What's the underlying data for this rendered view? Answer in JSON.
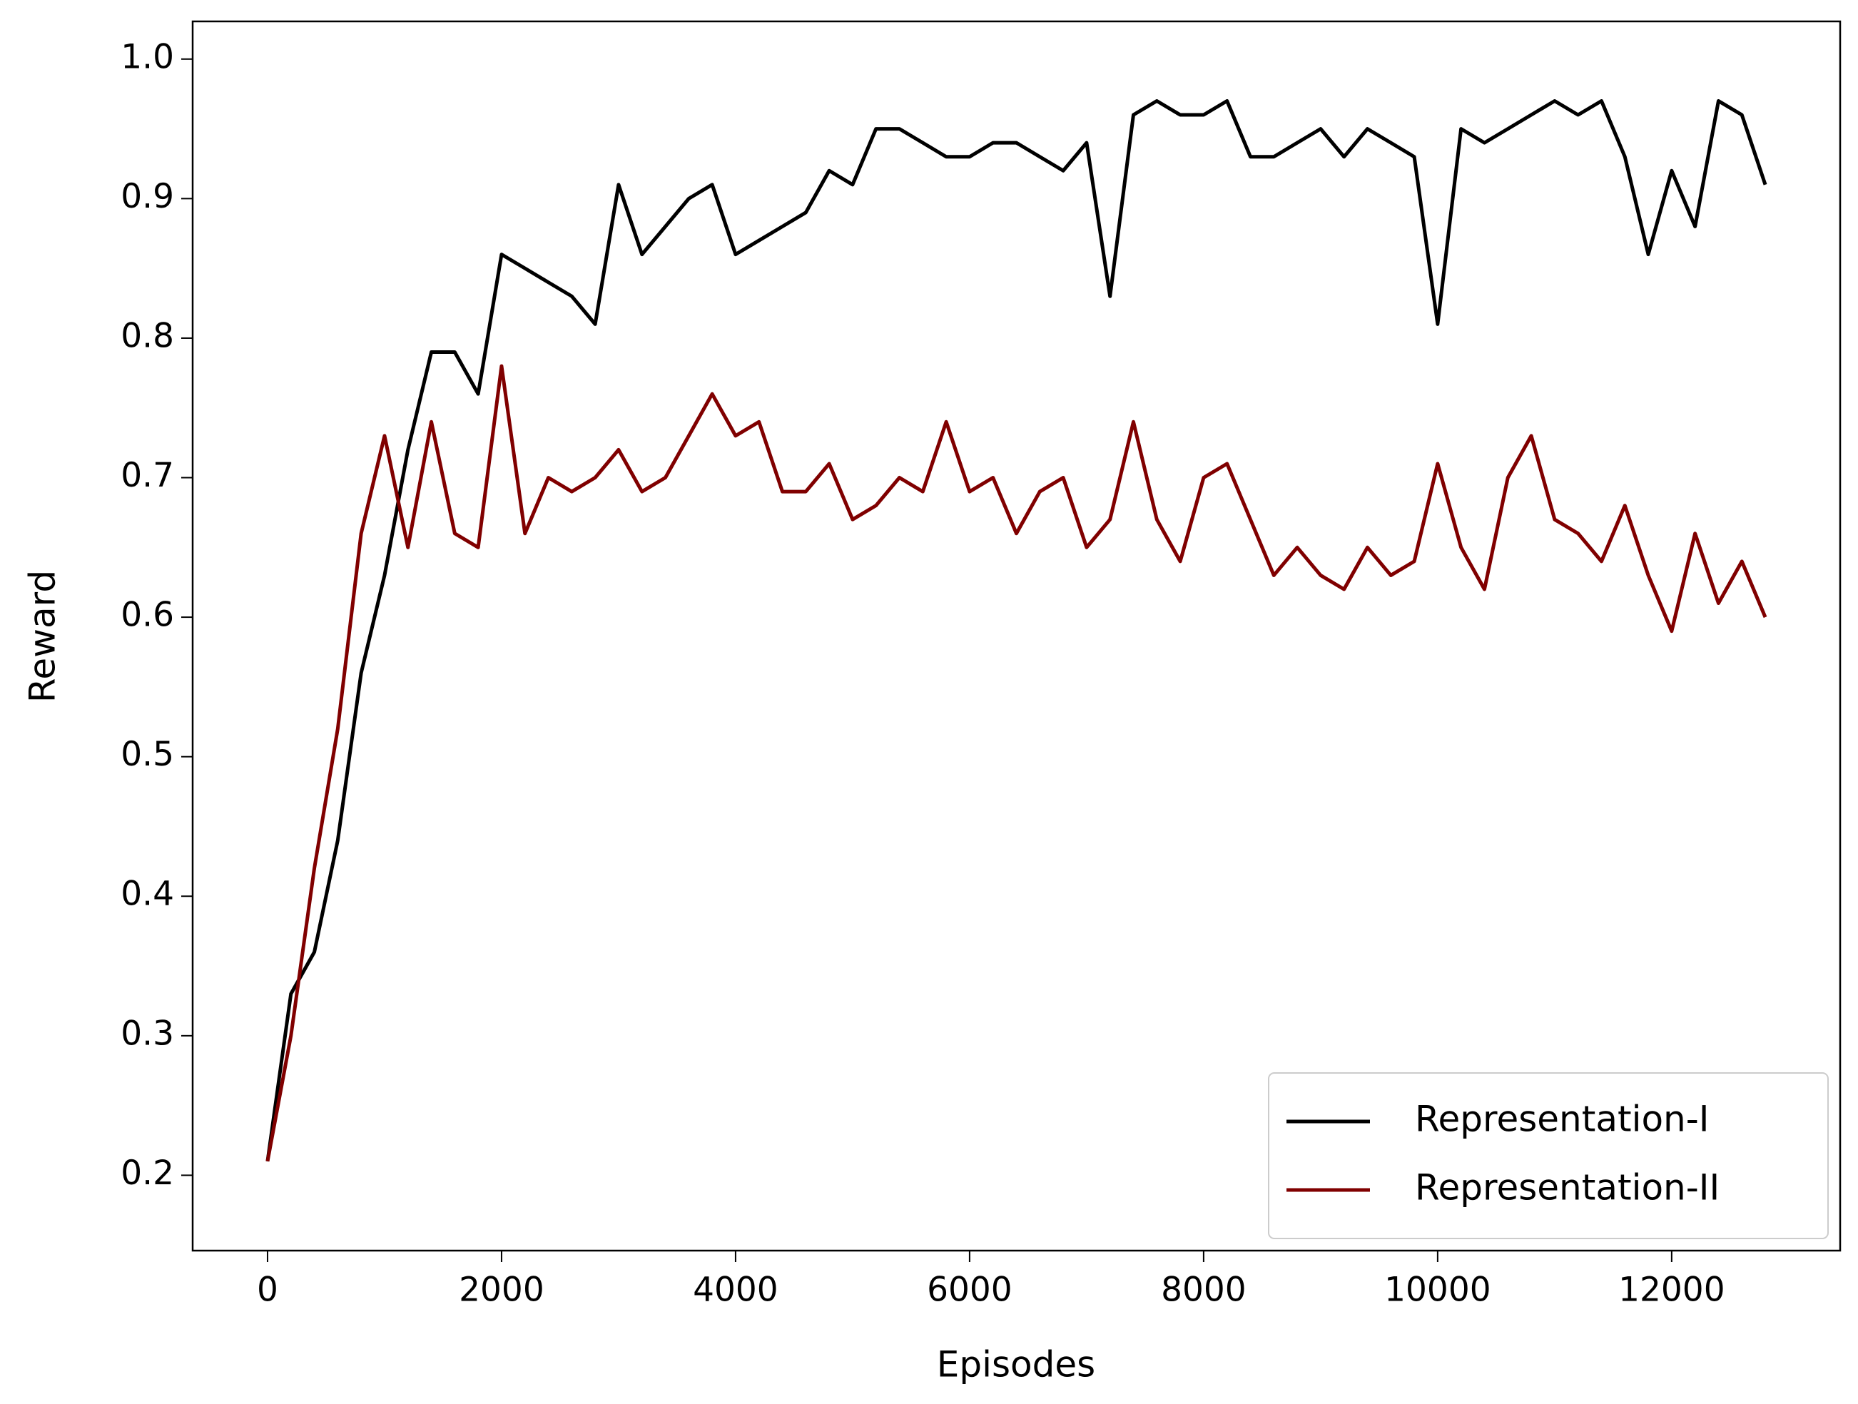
{
  "chart_data": {
    "type": "line",
    "x_label": "Episodes",
    "y_label": "Reward",
    "x": [
      0,
      200,
      400,
      600,
      800,
      1000,
      1200,
      1400,
      1600,
      1800,
      2000,
      2200,
      2400,
      2600,
      2800,
      3000,
      3200,
      3400,
      3600,
      3800,
      4000,
      4200,
      4400,
      4600,
      4800,
      5000,
      5200,
      5400,
      5600,
      5800,
      6000,
      6200,
      6400,
      6600,
      6800,
      7000,
      7200,
      7400,
      7600,
      7800,
      8000,
      8200,
      8400,
      8600,
      8800,
      9000,
      9200,
      9400,
      9600,
      9800,
      10000,
      10200,
      10400,
      10600,
      10800,
      11000,
      11200,
      11400,
      11600,
      11800,
      12000,
      12200,
      12400,
      12600,
      12800
    ],
    "series": [
      {
        "name": "Representation-I",
        "color": "#000000",
        "values": [
          0.21,
          0.33,
          0.36,
          0.44,
          0.56,
          0.63,
          0.72,
          0.79,
          0.79,
          0.76,
          0.86,
          0.85,
          0.84,
          0.83,
          0.81,
          0.91,
          0.86,
          0.88,
          0.9,
          0.91,
          0.86,
          0.87,
          0.88,
          0.89,
          0.92,
          0.91,
          0.95,
          0.95,
          0.94,
          0.93,
          0.93,
          0.94,
          0.94,
          0.93,
          0.92,
          0.94,
          0.83,
          0.96,
          0.97,
          0.96,
          0.96,
          0.97,
          0.93,
          0.93,
          0.94,
          0.95,
          0.93,
          0.95,
          0.94,
          0.93,
          0.81,
          0.95,
          0.94,
          0.95,
          0.96,
          0.97,
          0.96,
          0.97,
          0.93,
          0.86,
          0.92,
          0.88,
          0.97,
          0.96,
          0.91
        ]
      },
      {
        "name": "Representation-II",
        "color": "#800000",
        "values": [
          0.21,
          0.3,
          0.42,
          0.52,
          0.66,
          0.73,
          0.65,
          0.74,
          0.66,
          0.65,
          0.78,
          0.66,
          0.7,
          0.69,
          0.7,
          0.72,
          0.69,
          0.7,
          0.73,
          0.76,
          0.73,
          0.74,
          0.69,
          0.69,
          0.71,
          0.67,
          0.68,
          0.7,
          0.69,
          0.74,
          0.69,
          0.7,
          0.66,
          0.69,
          0.7,
          0.65,
          0.67,
          0.74,
          0.67,
          0.64,
          0.7,
          0.71,
          0.67,
          0.63,
          0.65,
          0.63,
          0.62,
          0.65,
          0.63,
          0.64,
          0.71,
          0.65,
          0.62,
          0.7,
          0.73,
          0.67,
          0.66,
          0.64,
          0.68,
          0.63,
          0.59,
          0.66,
          0.61,
          0.64,
          0.6
        ]
      }
    ],
    "xlim": [
      -640,
      13440
    ],
    "ylim": [
      0.146,
      1.027
    ],
    "xticks": [
      0,
      2000,
      4000,
      6000,
      8000,
      10000,
      12000
    ],
    "yticks": [
      0.2,
      0.3,
      0.4,
      0.5,
      0.6,
      0.7,
      0.8,
      0.9,
      {
        "value": 1,
        "label": "1.0"
      }
    ],
    "grid": false,
    "legend": "lower right"
  }
}
